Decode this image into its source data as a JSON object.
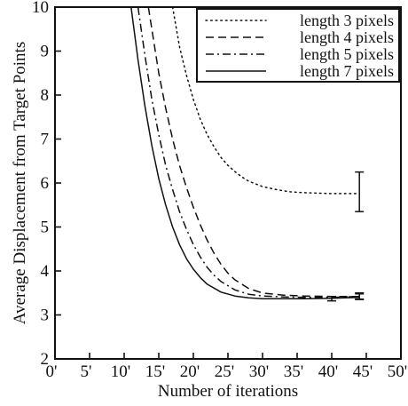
{
  "chart_data": {
    "type": "line",
    "title": "",
    "xlabel": "Number of iterations",
    "ylabel": "Average Displacement from Target Points",
    "xlim": [
      0,
      50
    ],
    "ylim": [
      2,
      10
    ],
    "x_ticks": [
      0,
      5,
      10,
      15,
      20,
      25,
      30,
      35,
      40,
      45,
      50
    ],
    "x_tick_labels": [
      "0'",
      "5'",
      "10'",
      "15'",
      "20'",
      "25'",
      "30'",
      "35'",
      "40'",
      "45'",
      "50'"
    ],
    "y_ticks": [
      2,
      3,
      4,
      5,
      6,
      7,
      8,
      9,
      10
    ],
    "y_tick_labels": [
      "2",
      "3",
      "4",
      "5",
      "6",
      "7",
      "8",
      "9",
      "10"
    ],
    "grid": false,
    "legend_position": "top-right",
    "series": [
      {
        "name": "length 3 pixels",
        "style": "dotted",
        "x": [
          17,
          18,
          19,
          20,
          21,
          22,
          23,
          24,
          25,
          26,
          27,
          28,
          30,
          32,
          34,
          36,
          38,
          40,
          42,
          44
        ],
        "y": [
          10.0,
          9.1,
          8.45,
          7.9,
          7.45,
          7.1,
          6.82,
          6.58,
          6.4,
          6.26,
          6.14,
          6.04,
          5.92,
          5.85,
          5.8,
          5.78,
          5.77,
          5.76,
          5.76,
          5.76
        ],
        "error_bar": {
          "x": 44,
          "low": 5.35,
          "high": 6.25
        }
      },
      {
        "name": "length 4 pixels",
        "style": "dashed",
        "x": [
          13.5,
          14,
          15,
          16,
          17,
          18,
          19,
          20,
          21,
          22,
          23,
          24,
          25,
          26,
          28,
          30,
          33,
          36,
          40,
          44
        ],
        "y": [
          10.0,
          9.5,
          8.5,
          7.7,
          7.0,
          6.4,
          5.9,
          5.45,
          5.05,
          4.7,
          4.4,
          4.15,
          3.95,
          3.8,
          3.6,
          3.5,
          3.45,
          3.43,
          3.42,
          3.42
        ],
        "error_bar": {
          "x": 44,
          "low": 3.36,
          "high": 3.5
        }
      },
      {
        "name": "length 5 pixels",
        "style": "dashdot",
        "x": [
          12,
          13,
          14,
          15,
          16,
          17,
          18,
          19,
          20,
          21,
          22,
          23,
          24,
          26,
          28,
          30,
          33,
          36,
          40,
          44
        ],
        "y": [
          10.0,
          8.9,
          7.9,
          7.1,
          6.4,
          5.85,
          5.35,
          4.95,
          4.6,
          4.32,
          4.08,
          3.9,
          3.76,
          3.57,
          3.47,
          3.43,
          3.41,
          3.4,
          3.4,
          3.42
        ],
        "error_bar": {
          "x": 44,
          "low": 3.35,
          "high": 3.48
        }
      },
      {
        "name": "length 7 pixels",
        "style": "solid",
        "x": [
          11,
          12,
          13,
          14,
          15,
          16,
          17,
          18,
          19,
          20,
          21,
          22,
          24,
          26,
          28,
          30,
          33,
          36,
          40,
          44
        ],
        "y": [
          10.0,
          8.8,
          7.75,
          6.85,
          6.1,
          5.5,
          5.0,
          4.6,
          4.28,
          4.04,
          3.85,
          3.7,
          3.52,
          3.43,
          3.39,
          3.37,
          3.37,
          3.37,
          3.38,
          3.4
        ],
        "error_bar": {
          "x": 40,
          "low": 3.32,
          "high": 3.42
        }
      }
    ]
  }
}
